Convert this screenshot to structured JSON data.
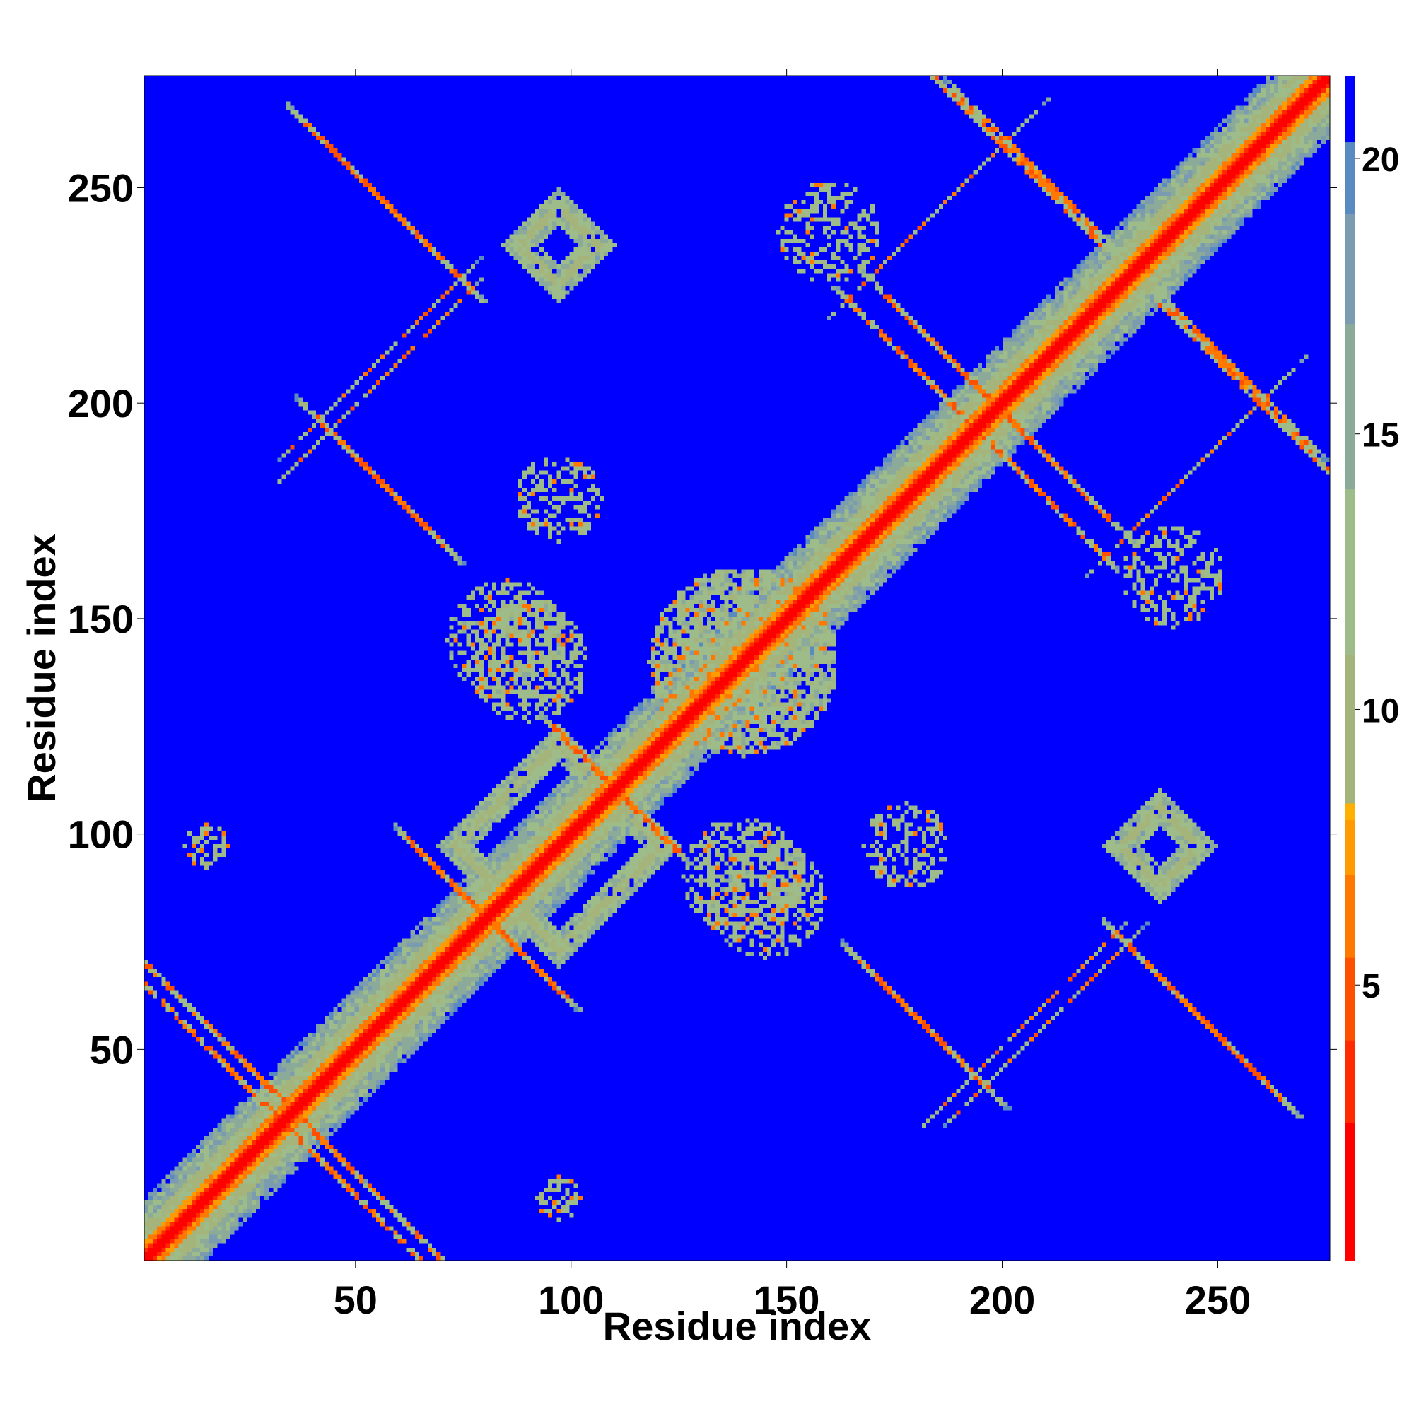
{
  "chart_data": {
    "type": "heatmap",
    "title": "",
    "xlabel": "Residue index",
    "ylabel": "Residue index",
    "xlim": [
      1,
      276
    ],
    "ylim": [
      1,
      276
    ],
    "xticks": [
      50,
      100,
      150,
      200,
      250
    ],
    "yticks": [
      50,
      100,
      150,
      200,
      250
    ],
    "xtick_labels": [
      "50",
      "100",
      "150",
      "200",
      "250"
    ],
    "ytick_labels": [
      "50",
      "100",
      "150",
      "200",
      "250"
    ],
    "colorbar": {
      "range": [
        0,
        21.5
      ],
      "ticks": [
        5,
        10,
        15,
        20
      ],
      "tick_labels": [
        "5",
        "10",
        "15",
        "20"
      ],
      "colors": [
        {
          "value": 0,
          "color": "#ff0000"
        },
        {
          "value": 2.5,
          "color": "#ff2a00"
        },
        {
          "value": 4,
          "color": "#ff5000"
        },
        {
          "value": 5.5,
          "color": "#ff7800"
        },
        {
          "value": 7,
          "color": "#ff9a00"
        },
        {
          "value": 8,
          "color": "#ffb000"
        },
        {
          "value": 8.3,
          "color": "#a5b47a"
        },
        {
          "value": 11,
          "color": "#9dbc8a"
        },
        {
          "value": 14,
          "color": "#8caa9a"
        },
        {
          "value": 17,
          "color": "#7a9bb0"
        },
        {
          "value": 19,
          "color": "#5a8bc0"
        },
        {
          "value": 20.3,
          "color": "#0000ff"
        }
      ]
    },
    "background_value": 21.5,
    "features": [
      {
        "kind": "diagonal",
        "from": 1,
        "to": 276
      },
      {
        "kind": "antidiagonal_band",
        "center_x": 25,
        "center_y": 45,
        "extent": 24,
        "strength": 0.8
      },
      {
        "kind": "antidiagonal_band",
        "center_x": 45,
        "center_y": 20,
        "extent": 22,
        "strength": 0.8
      },
      {
        "kind": "antidiagonal_band",
        "center_x": 58,
        "center_y": 245,
        "extent": 18,
        "strength": 0.9
      },
      {
        "kind": "antidiagonal_band",
        "center_x": 55,
        "center_y": 182,
        "extent": 12,
        "strength": 0.8
      },
      {
        "kind": "parallel_band",
        "center_x": 55,
        "center_y": 210,
        "extent": 20,
        "strength": 0.6
      },
      {
        "kind": "diamond",
        "center_x": 97,
        "center_y": 237,
        "size": 9,
        "strength": 0.6
      },
      {
        "kind": "diamond",
        "center_x": 97,
        "center_y": 97,
        "size": 24,
        "strength": 0.9
      },
      {
        "kind": "antidiagonal_band",
        "center_x": 80,
        "center_y": 80,
        "extent": 18,
        "strength": 1.0
      },
      {
        "kind": "antidiagonal_band",
        "center_x": 110,
        "center_y": 110,
        "extent": 14,
        "strength": 1.0
      },
      {
        "kind": "cloud",
        "center_x": 85,
        "center_y": 145,
        "size": 14,
        "strength": 0.6
      },
      {
        "kind": "cloud",
        "center_x": 140,
        "center_y": 140,
        "size": 22,
        "strength": 0.7
      },
      {
        "kind": "cloud",
        "center_x": 140,
        "center_y": 90,
        "size": 14,
        "strength": 0.6
      },
      {
        "kind": "cloud",
        "center_x": 15,
        "center_y": 97,
        "size": 5,
        "strength": 0.5
      },
      {
        "kind": "cloud",
        "center_x": 97,
        "center_y": 15,
        "size": 5,
        "strength": 0.5
      },
      {
        "kind": "antidiagonal_band",
        "center_x": 190,
        "center_y": 208,
        "extent": 20,
        "strength": 0.9
      },
      {
        "kind": "antidiagonal_band",
        "center_x": 208,
        "center_y": 180,
        "extent": 16,
        "strength": 0.9
      },
      {
        "kind": "antidiagonal_band",
        "center_x": 210,
        "center_y": 252,
        "extent": 20,
        "strength": 0.9
      },
      {
        "kind": "antidiagonal_band",
        "center_x": 255,
        "center_y": 205,
        "extent": 20,
        "strength": 0.9
      },
      {
        "kind": "parallel_band",
        "center_x": 185,
        "center_y": 245,
        "extent": 22,
        "strength": 0.5
      },
      {
        "kind": "antidiagonal_band",
        "center_x": 182,
        "center_y": 55,
        "extent": 16,
        "strength": 0.8
      },
      {
        "kind": "antidiagonal_band",
        "center_x": 248,
        "center_y": 55,
        "extent": 18,
        "strength": 0.8
      },
      {
        "kind": "parallel_band",
        "center_x": 205,
        "center_y": 55,
        "extent": 20,
        "strength": 0.5
      },
      {
        "kind": "diamond",
        "center_x": 237,
        "center_y": 97,
        "size": 9,
        "strength": 0.6
      },
      {
        "kind": "cloud",
        "center_x": 178,
        "center_y": 97,
        "size": 10,
        "strength": 0.5
      },
      {
        "kind": "cloud",
        "center_x": 240,
        "center_y": 160,
        "size": 12,
        "strength": 0.5
      }
    ]
  }
}
